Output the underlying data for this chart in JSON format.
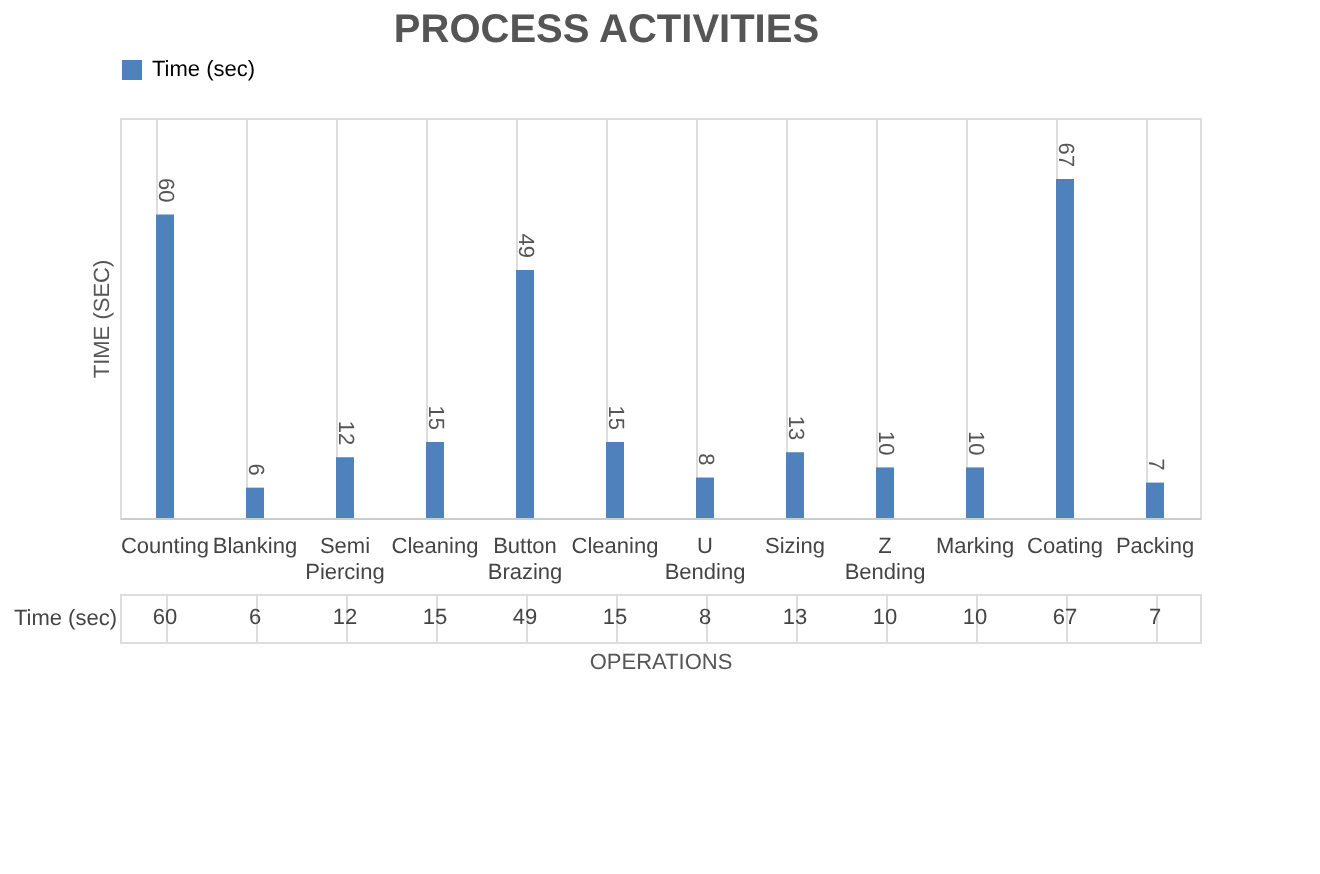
{
  "chart_data": {
    "type": "bar",
    "title": "PROCESS ACTIVITIES",
    "xlabel": "OPERATIONS",
    "ylabel": "TIME (SEC)",
    "categories": [
      "Counting",
      "Blanking",
      "Semi Piercing",
      "Cleaning",
      "Button Brazing",
      "Cleaning",
      "U Bending",
      "Sizing",
      "Z Bending",
      "Marking",
      "Coating",
      "Packing"
    ],
    "series": [
      {
        "name": "Time (sec)",
        "color": "#4f81bd",
        "values": [
          60,
          6,
          12,
          15,
          49,
          15,
          8,
          13,
          10,
          10,
          67,
          7
        ],
        "value_labels": [
          "60",
          "6",
          "12",
          "15",
          "49",
          "15",
          "8",
          "13",
          "10",
          "10",
          "67",
          "7"
        ]
      }
    ],
    "annotations": [
      "60",
      "6",
      "12",
      "15",
      "49",
      "15",
      "8",
      "13",
      "10",
      "10",
      "67",
      "7"
    ],
    "data_labels": true,
    "grid": "x",
    "legend": "top",
    "tick_labels": "x"
  }
}
